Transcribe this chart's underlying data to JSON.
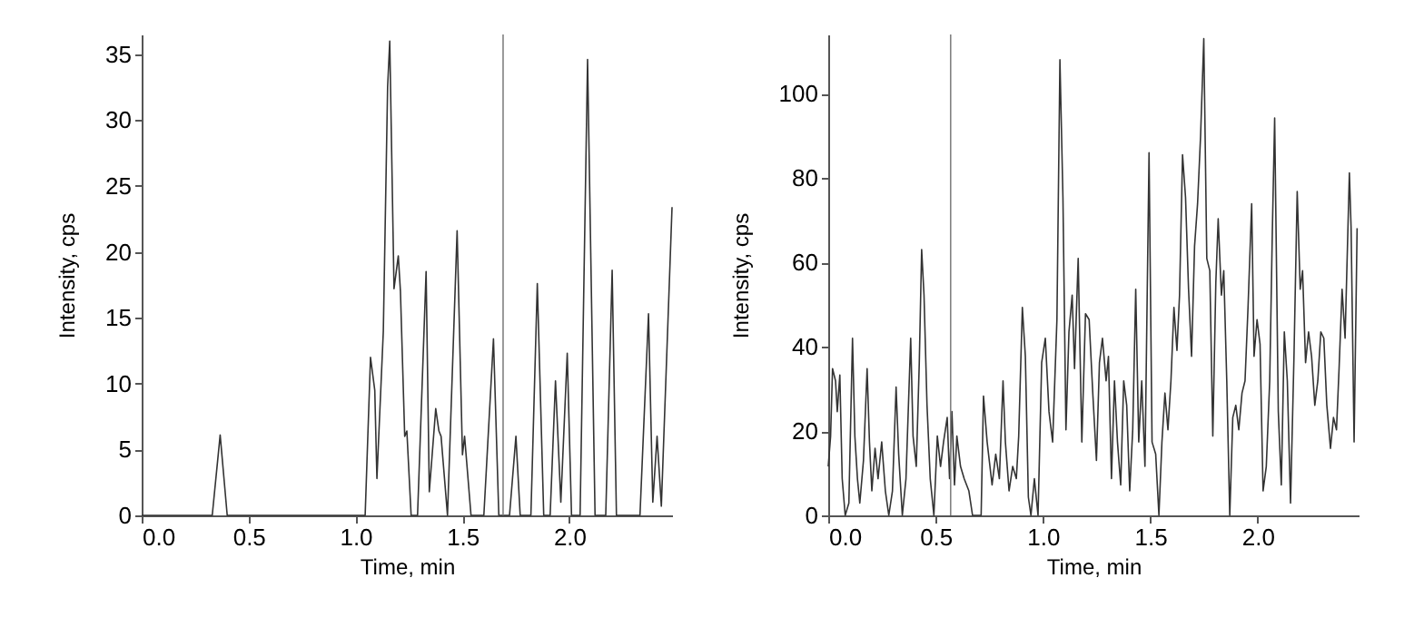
{
  "chart_data": [
    {
      "type": "line",
      "xlabel": "Time, min",
      "ylabel": "Intensity, cps",
      "xlim": [
        0,
        2.48
      ],
      "ylim": [
        0,
        36.5
      ],
      "xticks": [
        {
          "value": 0,
          "label": "0.0"
        },
        {
          "value": 0.5,
          "label": "0.5"
        },
        {
          "value": 1,
          "label": "1.0"
        },
        {
          "value": 1.5,
          "label": "1.5"
        },
        {
          "value": 2,
          "label": "2.0"
        }
      ],
      "yticks": [
        0,
        5,
        10,
        15,
        20,
        25,
        30,
        35
      ],
      "grid": false,
      "marker": "none",
      "line_style": "solid",
      "ref_lines": [
        {
          "axis": "x",
          "value": 1.69,
          "color": "#808080"
        }
      ],
      "x": [
        0,
        0.33,
        0.367,
        0.4,
        1.045,
        1.07,
        1.09,
        1.1,
        1.13,
        1.15,
        1.16,
        1.18,
        1.2,
        1.21,
        1.23,
        1.24,
        1.26,
        1.29,
        1.33,
        1.345,
        1.375,
        1.39,
        1.4,
        1.43,
        1.475,
        1.5,
        1.51,
        1.54,
        1.6,
        1.645,
        1.67,
        1.72,
        1.75,
        1.77,
        1.82,
        1.85,
        1.88,
        1.91,
        1.935,
        1.96,
        1.99,
        2.01,
        2.05,
        2.085,
        2.12,
        2.17,
        2.2,
        2.22,
        2.33,
        2.37,
        2.39,
        2.41,
        2.43,
        2.48
      ],
      "series": [
        {
          "color": "#333333",
          "values": [
            0,
            0,
            6.1,
            0,
            0,
            12,
            9.5,
            2.8,
            14,
            32.5,
            36,
            17.2,
            19.7,
            17,
            6,
            6.4,
            0,
            0,
            18.5,
            1.8,
            8.1,
            6.4,
            6,
            0,
            21.6,
            4.6,
            6,
            0,
            0,
            13.4,
            0,
            0,
            6,
            0,
            0,
            17.6,
            0,
            0,
            10.2,
            1,
            12.3,
            0,
            0,
            34.6,
            0,
            0,
            18.6,
            0,
            0,
            15.3,
            1,
            6,
            0.7,
            23.4
          ]
        }
      ]
    },
    {
      "type": "line",
      "xlabel": "Time, min",
      "ylabel": "Intensity, cps",
      "xlim": [
        0,
        2.47
      ],
      "ylim": [
        0,
        114
      ],
      "xticks": [
        {
          "value": 0,
          "label": "0.0"
        },
        {
          "value": 0.5,
          "label": "0.5"
        },
        {
          "value": 1,
          "label": "1.0"
        },
        {
          "value": 1.5,
          "label": "1.5"
        },
        {
          "value": 2,
          "label": "2.0"
        }
      ],
      "yticks": [
        0,
        20,
        40,
        60,
        80,
        100
      ],
      "grid": false,
      "marker": "none",
      "line_style": "solid",
      "ref_lines": [
        {
          "axis": "x",
          "value": 0.57,
          "color": "#808080"
        }
      ],
      "x": [
        0,
        0.011,
        0.02,
        0.034,
        0.042,
        0.054,
        0.065,
        0.079,
        0.096,
        0.113,
        0.124,
        0.136,
        0.147,
        0.164,
        0.181,
        0.192,
        0.203,
        0.218,
        0.232,
        0.249,
        0.266,
        0.282,
        0.299,
        0.316,
        0.328,
        0.345,
        0.362,
        0.384,
        0.395,
        0.41,
        0.424,
        0.435,
        0.446,
        0.46,
        0.475,
        0.492,
        0.508,
        0.523,
        0.537,
        0.554,
        0.565,
        0.576,
        0.588,
        0.599,
        0.616,
        0.633,
        0.655,
        0.672,
        0.712,
        0.723,
        0.74,
        0.763,
        0.78,
        0.797,
        0.814,
        0.825,
        0.842,
        0.859,
        0.876,
        0.887,
        0.904,
        0.918,
        0.932,
        0.944,
        0.96,
        0.977,
        0.994,
        1.011,
        1.028,
        1.045,
        1.065,
        1.079,
        1.093,
        1.107,
        1.121,
        1.136,
        1.147,
        1.164,
        1.181,
        1.198,
        1.215,
        1.232,
        1.249,
        1.263,
        1.277,
        1.294,
        1.305,
        1.319,
        1.333,
        1.347,
        1.362,
        1.376,
        1.39,
        1.404,
        1.418,
        1.432,
        1.446,
        1.46,
        1.475,
        1.494,
        1.508,
        1.525,
        1.54,
        1.554,
        1.568,
        1.582,
        1.596,
        1.61,
        1.624,
        1.636,
        1.65,
        1.664,
        1.678,
        1.692,
        1.706,
        1.72,
        1.734,
        1.749,
        1.763,
        1.777,
        1.791,
        1.805,
        1.816,
        1.831,
        1.842,
        1.856,
        1.87,
        1.884,
        1.898,
        1.912,
        1.927,
        1.941,
        1.955,
        1.972,
        1.983,
        1.997,
        2.011,
        2.025,
        2.04,
        2.056,
        2.068,
        2.079,
        2.096,
        2.11,
        2.124,
        2.138,
        2.153,
        2.169,
        2.184,
        2.198,
        2.209,
        2.223,
        2.237,
        2.251,
        2.266,
        2.28,
        2.294,
        2.308,
        2.322,
        2.339,
        2.353,
        2.367,
        2.379,
        2.393,
        2.407,
        2.427,
        2.435,
        2.449,
        2.463
      ],
      "series": [
        {
          "color": "#333333",
          "values": [
            11.6,
            18.8,
            34.8,
            31.9,
            24.6,
            33.3,
            8.7,
            0,
            2.9,
            42,
            18.8,
            8.7,
            2.9,
            13,
            34.8,
            17.4,
            5.8,
            15.9,
            8.7,
            17.4,
            5.8,
            0,
            5.8,
            30.4,
            14.5,
            0,
            8.7,
            42,
            18.8,
            11.6,
            36.2,
            63,
            52.2,
            26.1,
            8.7,
            0,
            18.8,
            11.6,
            17.4,
            23.2,
            8.7,
            24.6,
            7.2,
            18.8,
            11.6,
            8.7,
            5.8,
            0,
            0,
            28.3,
            17.4,
            7.2,
            14.5,
            8.7,
            31.9,
            17.4,
            5.8,
            11.6,
            8.7,
            18.8,
            49.3,
            37.7,
            4.3,
            0,
            8.7,
            0,
            36.2,
            42,
            24.6,
            17.4,
            46.4,
            108,
            75.4,
            20.3,
            43.5,
            52.2,
            34.8,
            60.9,
            17.4,
            47.8,
            46.4,
            29,
            13,
            36.2,
            42,
            31.9,
            37.7,
            8.7,
            31.9,
            17.4,
            7.2,
            31.9,
            26.1,
            5.8,
            20.3,
            53.6,
            17.4,
            31.9,
            11.6,
            86,
            17.4,
            14.5,
            0,
            17.4,
            29,
            20.3,
            31.9,
            49.3,
            39.1,
            52.2,
            85.5,
            75.4,
            53.6,
            37.7,
            63.8,
            73.9,
            89.9,
            113,
            60.9,
            58,
            18.8,
            55.1,
            70.3,
            52.2,
            58,
            31.9,
            0,
            23.2,
            26.1,
            20.3,
            29,
            31.9,
            49.3,
            73.9,
            37.7,
            46.4,
            40.6,
            5.8,
            11.6,
            31.9,
            66.7,
            94.2,
            24.6,
            7.2,
            43.5,
            31.9,
            2.9,
            37.7,
            76.8,
            53.6,
            58,
            36.2,
            43.5,
            37.7,
            26.1,
            31.9,
            43.5,
            42,
            26.1,
            15.9,
            23.2,
            20.3,
            34.8,
            53.6,
            42,
            81.2,
            68.1,
            17.4,
            68.1
          ]
        }
      ]
    }
  ]
}
